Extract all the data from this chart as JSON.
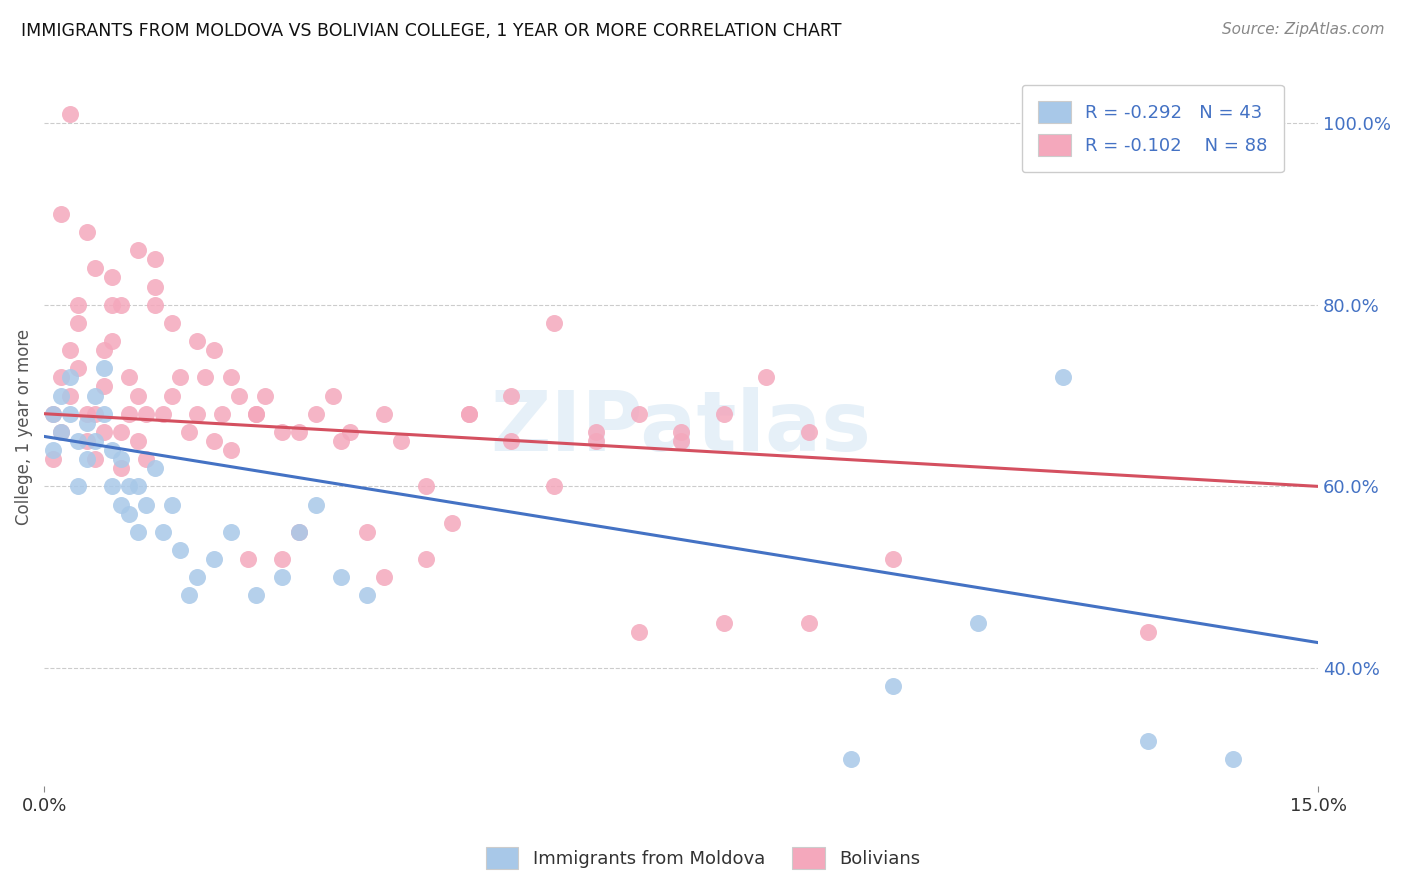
{
  "title": "IMMIGRANTS FROM MOLDOVA VS BOLIVIAN COLLEGE, 1 YEAR OR MORE CORRELATION CHART",
  "source": "Source: ZipAtlas.com",
  "ylabel": "College, 1 year or more",
  "ylabel_right_ticks": [
    "40.0%",
    "60.0%",
    "80.0%",
    "100.0%"
  ],
  "ylabel_right_vals": [
    0.4,
    0.6,
    0.8,
    1.0
  ],
  "xlim": [
    0.0,
    0.15
  ],
  "ylim": [
    0.27,
    1.06
  ],
  "moldova_color": "#a8c8e8",
  "bolivia_color": "#f4a8bc",
  "moldova_edge_color": "#88a8d0",
  "bolivia_edge_color": "#e08098",
  "moldova_line_color": "#4472c4",
  "bolivia_line_color": "#d45060",
  "moldova_R": -0.292,
  "moldova_N": 43,
  "bolivia_R": -0.102,
  "bolivia_N": 88,
  "legend_label_moldova": "Immigrants from Moldova",
  "legend_label_bolivia": "Bolivians",
  "moldova_trend_x0": 0.0,
  "moldova_trend_y0": 0.655,
  "moldova_trend_x1": 0.15,
  "moldova_trend_y1": 0.428,
  "bolivia_trend_x0": 0.0,
  "bolivia_trend_y0": 0.68,
  "bolivia_trend_x1": 0.15,
  "bolivia_trend_y1": 0.6,
  "moldova_x": [
    0.001,
    0.001,
    0.002,
    0.002,
    0.003,
    0.003,
    0.004,
    0.004,
    0.005,
    0.005,
    0.006,
    0.006,
    0.007,
    0.007,
    0.008,
    0.008,
    0.009,
    0.009,
    0.01,
    0.01,
    0.011,
    0.011,
    0.012,
    0.013,
    0.014,
    0.015,
    0.016,
    0.017,
    0.018,
    0.02,
    0.022,
    0.025,
    0.028,
    0.03,
    0.032,
    0.035,
    0.038,
    0.095,
    0.1,
    0.11,
    0.12,
    0.13,
    0.14
  ],
  "moldova_y": [
    0.68,
    0.64,
    0.7,
    0.66,
    0.72,
    0.68,
    0.65,
    0.6,
    0.67,
    0.63,
    0.7,
    0.65,
    0.73,
    0.68,
    0.64,
    0.6,
    0.58,
    0.63,
    0.6,
    0.57,
    0.55,
    0.6,
    0.58,
    0.62,
    0.55,
    0.58,
    0.53,
    0.48,
    0.5,
    0.52,
    0.55,
    0.48,
    0.5,
    0.55,
    0.58,
    0.5,
    0.48,
    0.3,
    0.38,
    0.45,
    0.72,
    0.32,
    0.3
  ],
  "bolivia_x": [
    0.001,
    0.001,
    0.002,
    0.002,
    0.003,
    0.003,
    0.004,
    0.004,
    0.004,
    0.005,
    0.005,
    0.006,
    0.006,
    0.007,
    0.007,
    0.007,
    0.008,
    0.008,
    0.009,
    0.009,
    0.01,
    0.01,
    0.011,
    0.011,
    0.012,
    0.012,
    0.013,
    0.013,
    0.014,
    0.015,
    0.016,
    0.017,
    0.018,
    0.019,
    0.02,
    0.021,
    0.022,
    0.023,
    0.024,
    0.025,
    0.026,
    0.028,
    0.03,
    0.032,
    0.034,
    0.036,
    0.038,
    0.04,
    0.042,
    0.045,
    0.048,
    0.05,
    0.055,
    0.06,
    0.065,
    0.07,
    0.075,
    0.08,
    0.085,
    0.09,
    0.002,
    0.003,
    0.005,
    0.006,
    0.008,
    0.009,
    0.011,
    0.013,
    0.015,
    0.018,
    0.02,
    0.022,
    0.025,
    0.028,
    0.03,
    0.035,
    0.04,
    0.045,
    0.05,
    0.055,
    0.06,
    0.065,
    0.07,
    0.075,
    0.08,
    0.09,
    0.1,
    0.13
  ],
  "bolivia_y": [
    0.68,
    0.63,
    0.72,
    0.66,
    0.75,
    0.7,
    0.8,
    0.78,
    0.73,
    0.68,
    0.65,
    0.68,
    0.63,
    0.75,
    0.71,
    0.66,
    0.8,
    0.76,
    0.66,
    0.62,
    0.72,
    0.68,
    0.7,
    0.65,
    0.68,
    0.63,
    0.85,
    0.8,
    0.68,
    0.7,
    0.72,
    0.66,
    0.68,
    0.72,
    0.65,
    0.68,
    0.64,
    0.7,
    0.52,
    0.68,
    0.7,
    0.66,
    0.55,
    0.68,
    0.7,
    0.66,
    0.55,
    0.68,
    0.65,
    0.6,
    0.56,
    0.68,
    0.7,
    0.6,
    0.66,
    0.68,
    0.65,
    0.68,
    0.72,
    0.45,
    0.9,
    1.01,
    0.88,
    0.84,
    0.83,
    0.8,
    0.86,
    0.82,
    0.78,
    0.76,
    0.75,
    0.72,
    0.68,
    0.52,
    0.66,
    0.65,
    0.5,
    0.52,
    0.68,
    0.65,
    0.78,
    0.65,
    0.44,
    0.66,
    0.45,
    0.66,
    0.52,
    0.44
  ]
}
